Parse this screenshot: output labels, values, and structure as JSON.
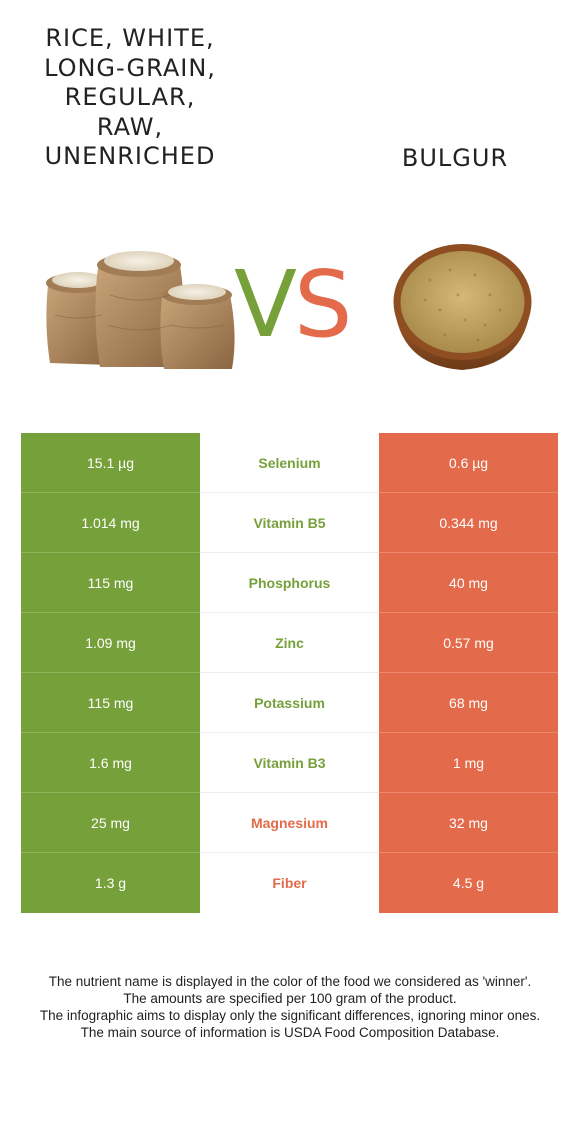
{
  "food_left": {
    "name": "RICE, WHITE,\nLONG-GRAIN,\nREGULAR,\nRAW,\nUNENRICHED",
    "color": "#76a03a"
  },
  "food_right": {
    "name": "BULGUR",
    "color": "#e36b4b"
  },
  "vs": {
    "v": "V",
    "s": "S"
  },
  "nutrients": [
    {
      "left": "15.1 µg",
      "name": "Selenium",
      "right": "0.6 µg",
      "winner": "left"
    },
    {
      "left": "1.014 mg",
      "name": "Vitamin B5",
      "right": "0.344 mg",
      "winner": "left"
    },
    {
      "left": "115 mg",
      "name": "Phosphorus",
      "right": "40 mg",
      "winner": "left"
    },
    {
      "left": "1.09 mg",
      "name": "Zinc",
      "right": "0.57 mg",
      "winner": "left"
    },
    {
      "left": "115 mg",
      "name": "Potassium",
      "right": "68 mg",
      "winner": "left"
    },
    {
      "left": "1.6 mg",
      "name": "Vitamin B3",
      "right": "1 mg",
      "winner": "left"
    },
    {
      "left": "25 mg",
      "name": "Magnesium",
      "right": "32 mg",
      "winner": "right"
    },
    {
      "left": "1.3 g",
      "name": "Fiber",
      "right": "4.5 g",
      "winner": "right"
    }
  ],
  "footer": [
    "The nutrient name is displayed in the color of the food we considered as 'winner'.",
    "The amounts are specified per 100 gram of the product.",
    "The infographic aims to display only the significant differences, ignoring minor ones.",
    "The main source of information is USDA Food Composition Database."
  ]
}
